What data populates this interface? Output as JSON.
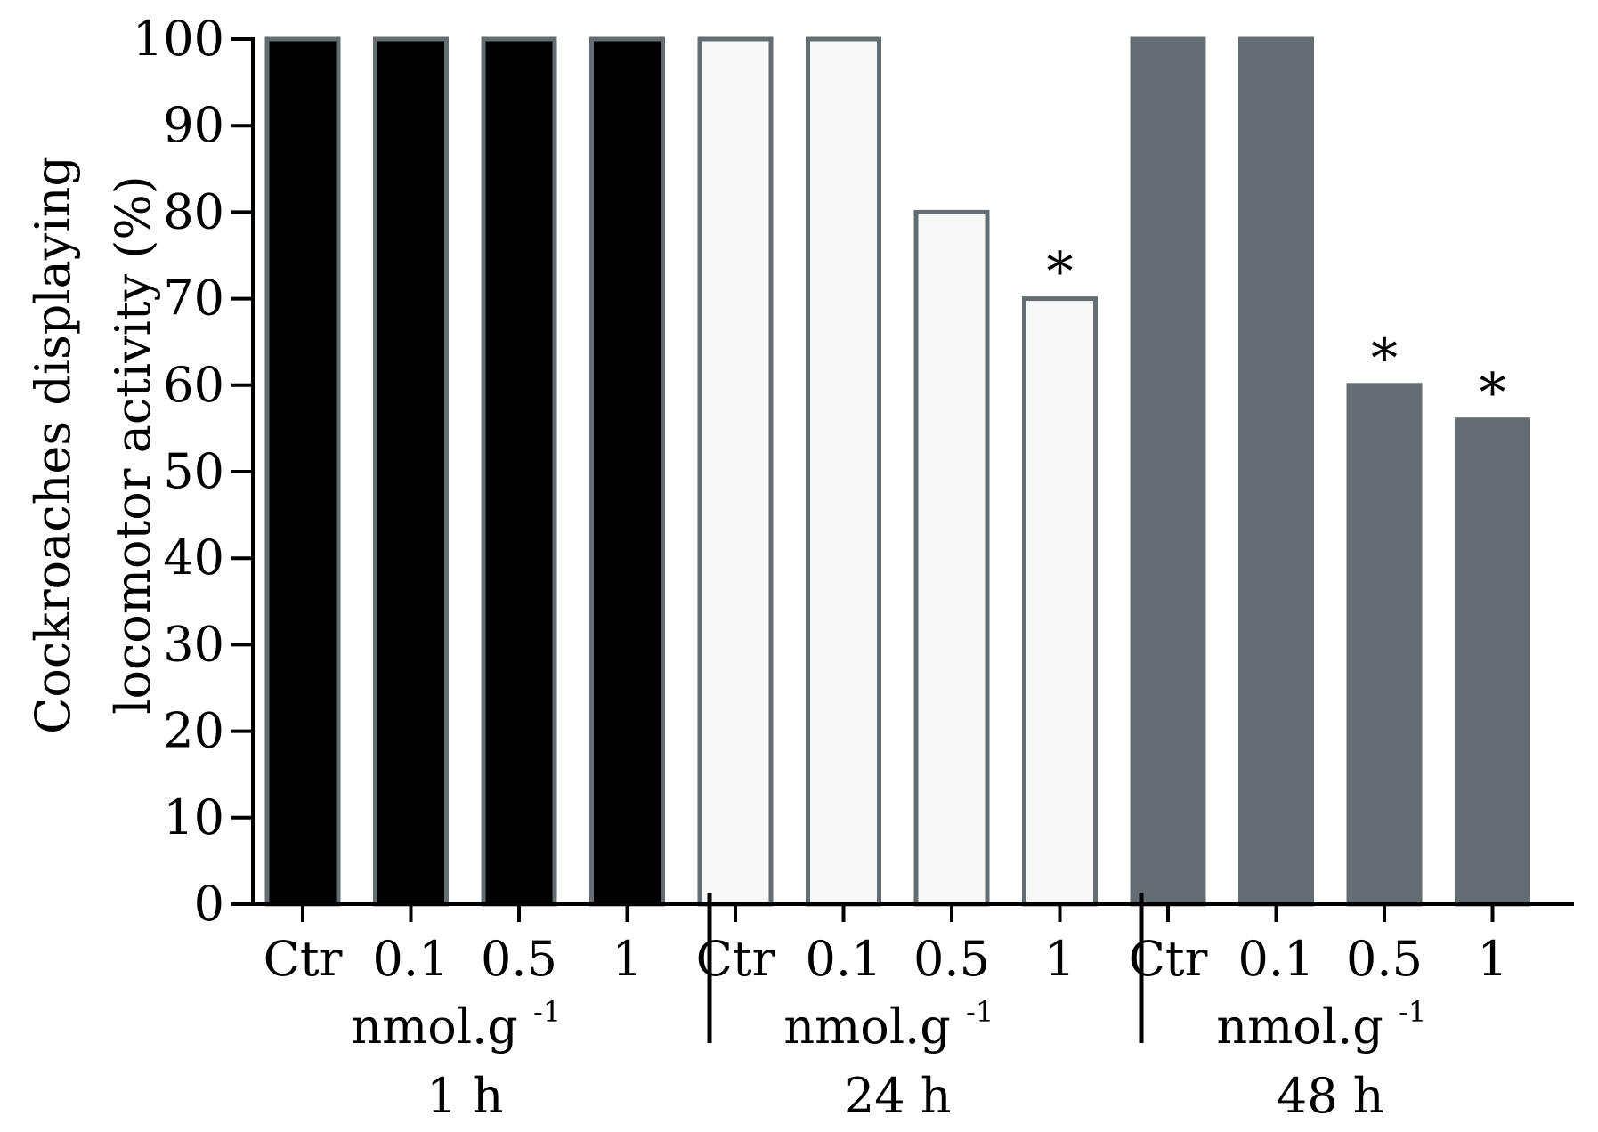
{
  "chart_data": {
    "type": "bar",
    "title": "",
    "ylabel_lines": [
      "Cockroaches displaying",
      "locomotor activity (%)"
    ],
    "ylim": [
      0,
      100
    ],
    "yticks": [
      0,
      10,
      20,
      30,
      40,
      50,
      60,
      70,
      80,
      90,
      100
    ],
    "grid": false,
    "legend": "none",
    "unit_label": "nmol.g",
    "unit_superscript": "-1",
    "groups": [
      {
        "name": "1 h",
        "fill": "#000000",
        "stroke": "#646e72",
        "bars": [
          {
            "category": "Ctr",
            "value": 100,
            "significant": false
          },
          {
            "category": "0.1",
            "value": 100,
            "significant": false
          },
          {
            "category": "0.5",
            "value": 100,
            "significant": false
          },
          {
            "category": "1",
            "value": 100,
            "significant": false
          }
        ]
      },
      {
        "name": "24 h",
        "fill": "#f9f8f8",
        "stroke": "#646e72",
        "bars": [
          {
            "category": "Ctr",
            "value": 100,
            "significant": false
          },
          {
            "category": "0.1",
            "value": 100,
            "significant": false
          },
          {
            "category": "0.5",
            "value": 80,
            "significant": false
          },
          {
            "category": "1",
            "value": 70,
            "significant": true
          }
        ]
      },
      {
        "name": "48 h",
        "fill": "#646e72",
        "stroke": "#646e72",
        "bars": [
          {
            "category": "Ctr",
            "value": 100,
            "significant": false
          },
          {
            "category": "0.1",
            "value": 100,
            "significant": false
          },
          {
            "category": "0.5",
            "value": 60,
            "significant": true
          },
          {
            "category": "1",
            "value": 56,
            "significant": true
          }
        ]
      }
    ],
    "significance_marker": "*"
  }
}
